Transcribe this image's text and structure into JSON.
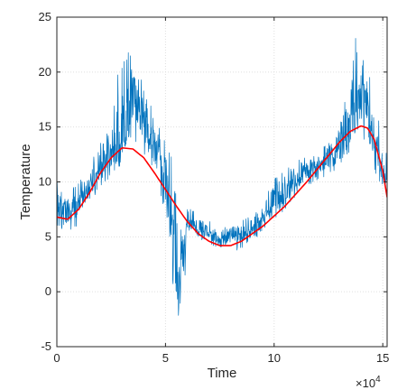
{
  "chart_data": {
    "type": "line",
    "title": "",
    "xlabel": "Time",
    "ylabel": "Temperature",
    "x_exponent_label": "×10",
    "x_exponent": "4",
    "xlim": [
      0,
      15.2
    ],
    "ylim": [
      -5,
      25
    ],
    "x_ticks": [
      0,
      5,
      10,
      15
    ],
    "y_ticks": [
      -5,
      0,
      5,
      10,
      15,
      20,
      25
    ],
    "x_tick_labels": [
      "0",
      "5",
      "10",
      "15"
    ],
    "y_tick_labels": [
      "-5",
      "0",
      "5",
      "10",
      "15",
      "20",
      "25"
    ],
    "grid": true,
    "legend": "none",
    "series": [
      {
        "color": "#0072BD",
        "style": "noisy",
        "x": [
          0,
          0.5,
          1,
          1.5,
          2,
          2.5,
          3,
          3.3,
          3.5,
          3.7,
          4,
          4.5,
          5,
          5.3,
          5.6,
          5.8,
          6,
          6.3,
          6.5,
          7,
          7.5,
          8,
          8.5,
          9,
          9.5,
          10,
          10.5,
          11,
          11.5,
          12,
          12.5,
          13,
          13.5,
          13.8,
          14,
          14.3,
          14.6,
          15,
          15.2
        ],
        "values": [
          8,
          7,
          8,
          9.5,
          11.5,
          12.5,
          14,
          16,
          18,
          17,
          15,
          13,
          11,
          5,
          0,
          2,
          6,
          6,
          5.5,
          5.5,
          4.5,
          5,
          5,
          5.5,
          6.5,
          8,
          9,
          10,
          11,
          11.5,
          12,
          12.5,
          15,
          17,
          18,
          17,
          14,
          11,
          9.5
        ],
        "range_low": [
          6,
          4.5,
          6,
          8,
          9.5,
          10.5,
          12,
          13,
          13,
          12,
          11.5,
          10,
          7,
          1,
          -3,
          -1.5,
          4,
          4.5,
          4.5,
          4.5,
          3.5,
          3.5,
          4,
          4.5,
          5.5,
          6.5,
          7.5,
          8.5,
          9.5,
          10,
          10.5,
          11,
          12,
          13,
          14,
          13,
          11,
          9.5,
          8.5
        ],
        "range_high": [
          10,
          9,
          10,
          11.5,
          13.5,
          15,
          24.5,
          22,
          21,
          21,
          19,
          16,
          14,
          13,
          7,
          5.5,
          7.5,
          7.5,
          6.5,
          6.5,
          6,
          6,
          6.5,
          7,
          8,
          10.5,
          11,
          12,
          12.5,
          13,
          13.5,
          15,
          20,
          24.5,
          24.5,
          21,
          17,
          15,
          12
        ]
      },
      {
        "color": "#FF0000",
        "style": "smooth",
        "x": [
          0,
          0.5,
          1,
          1.5,
          2,
          2.5,
          3,
          3.5,
          4,
          4.5,
          5,
          5.5,
          6,
          6.5,
          7,
          7.5,
          8,
          8.5,
          9,
          9.5,
          10,
          10.5,
          11,
          11.5,
          12,
          12.5,
          13,
          13.5,
          14,
          14.3,
          14.6,
          15,
          15.2
        ],
        "values": [
          6.8,
          6.6,
          7.5,
          9,
          10.8,
          12.2,
          13.1,
          13,
          12.2,
          10.8,
          9.3,
          7.8,
          6.4,
          5.3,
          4.6,
          4.2,
          4.2,
          4.6,
          5.3,
          6,
          6.9,
          7.8,
          8.9,
          10,
          11.2,
          12.4,
          13.6,
          14.6,
          15.1,
          14.9,
          13.9,
          11,
          8.6
        ]
      }
    ]
  }
}
